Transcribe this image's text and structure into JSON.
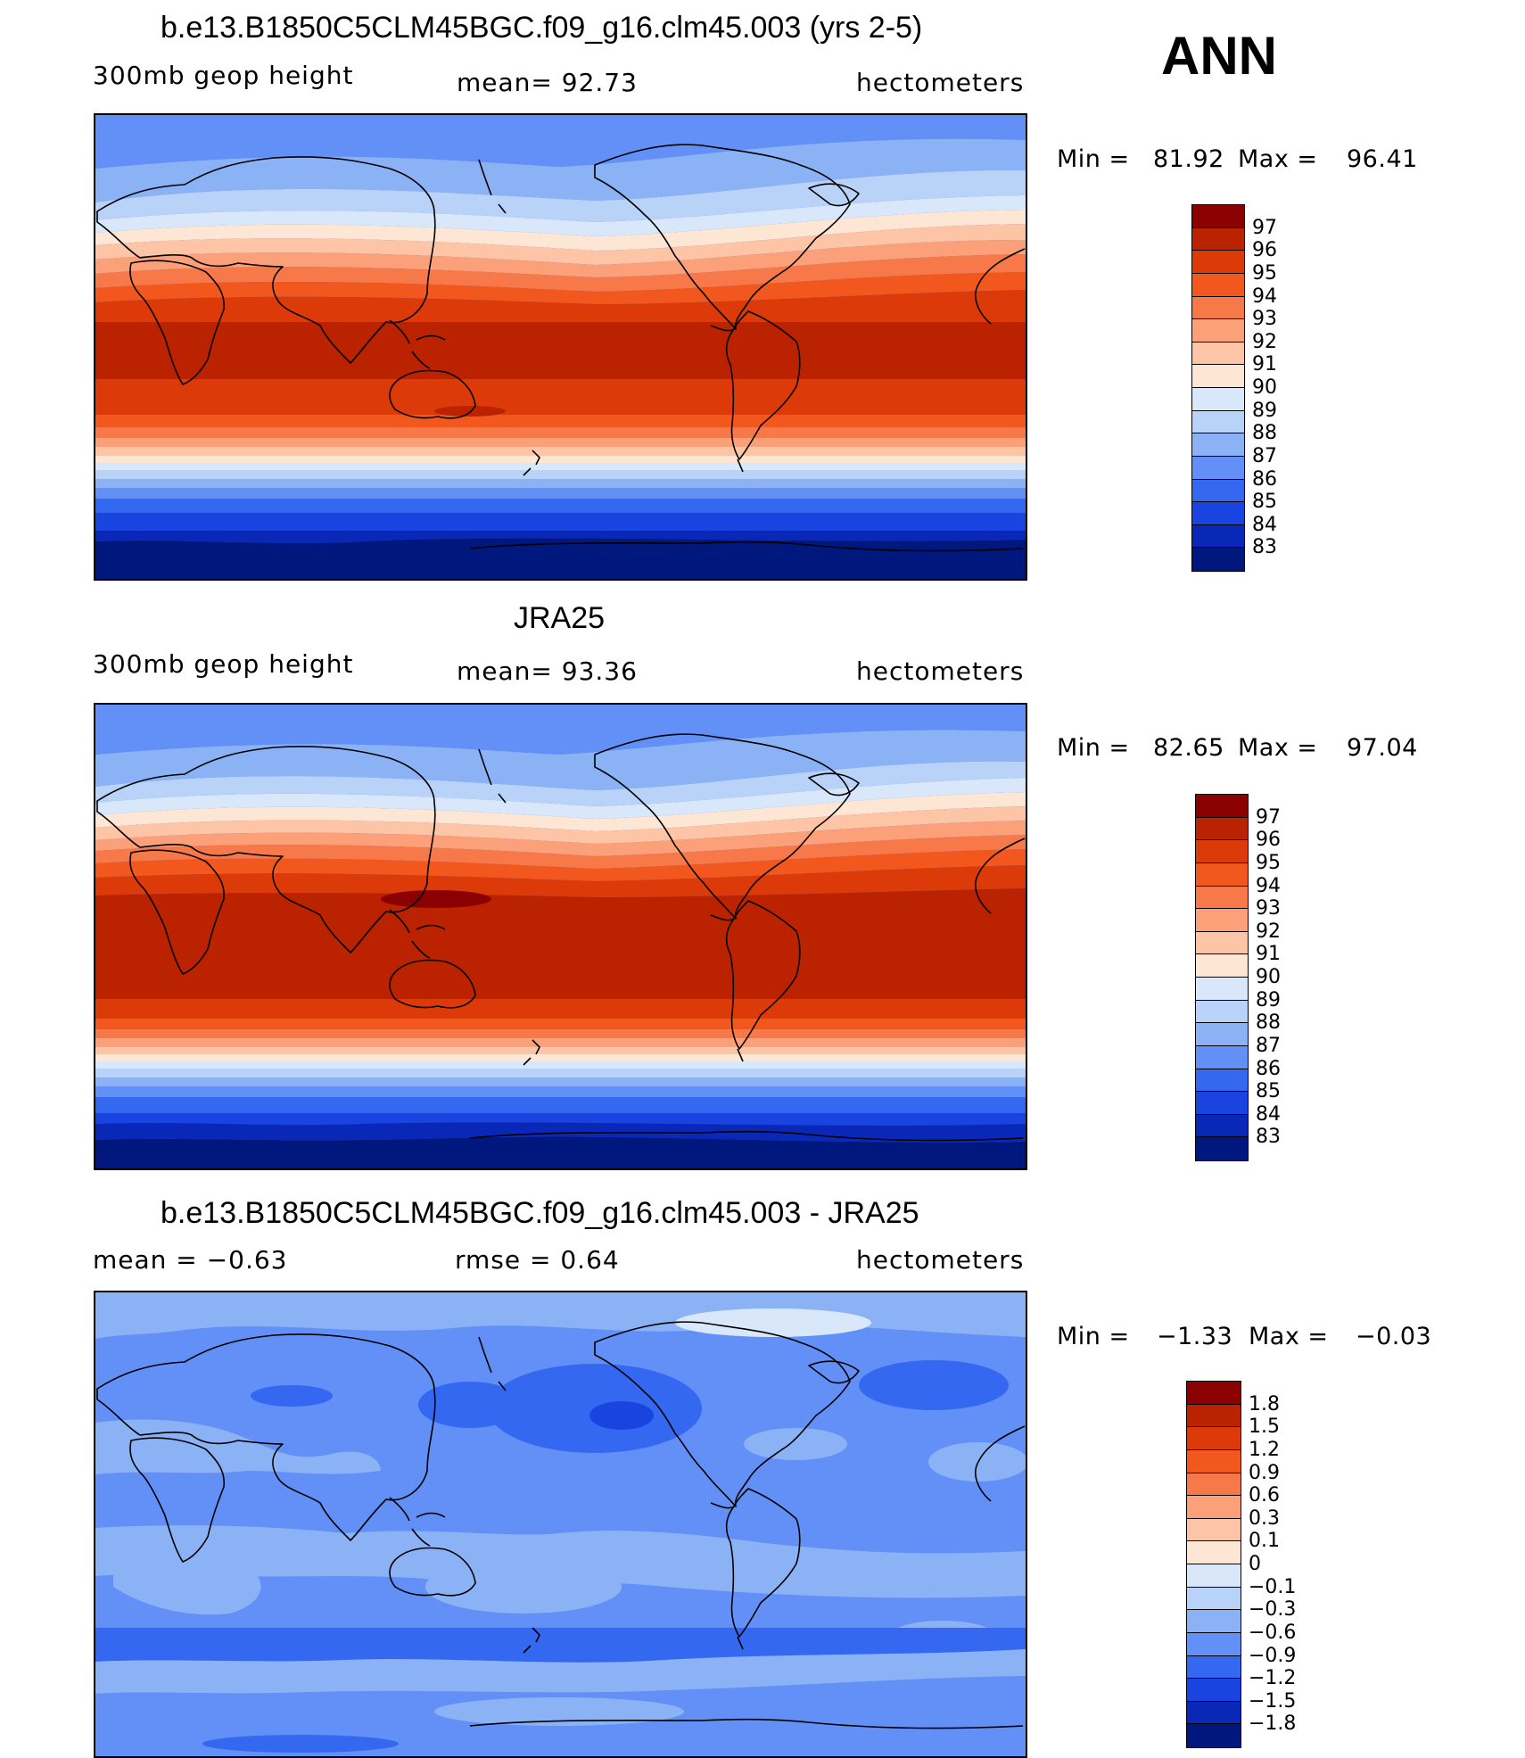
{
  "season": "ANN",
  "panels": [
    {
      "title": "b.e13.B1850C5CLM45BGC.f09_g16.clm45.003 (yrs 2-5)",
      "left": "300mb  geop  height",
      "center": "mean=   92.73",
      "right": "hectometers",
      "min_label": "Min  =",
      "min_value": "81.92",
      "max_label": "Max  =",
      "max_value": "96.41",
      "levels": [
        "97",
        "96",
        "95",
        "94",
        "93",
        "92",
        "91",
        "90",
        "89",
        "88",
        "87",
        "86",
        "85",
        "84",
        "83"
      ],
      "colors": [
        "#8b0000",
        "#bb2200",
        "#dd3a0a",
        "#f2581e",
        "#f7794a",
        "#fca07a",
        "#fdc4a6",
        "#fde6d4",
        "#d8e8fa",
        "#b8d2f8",
        "#8cb2f6",
        "#6290f6",
        "#3468f0",
        "#1a44e0",
        "#0a28b8",
        "#00187e"
      ]
    },
    {
      "title": "JRA25",
      "left": "300mb  geop  height",
      "center": "mean=   93.36",
      "right": "hectometers",
      "min_label": "Min  =",
      "min_value": "82.65",
      "max_label": "Max  =",
      "max_value": "97.04",
      "levels": [
        "97",
        "96",
        "95",
        "94",
        "93",
        "92",
        "91",
        "90",
        "89",
        "88",
        "87",
        "86",
        "85",
        "84",
        "83"
      ],
      "colors": [
        "#8b0000",
        "#bb2200",
        "#dd3a0a",
        "#f2581e",
        "#f7794a",
        "#fca07a",
        "#fdc4a6",
        "#fde6d4",
        "#d8e8fa",
        "#b8d2f8",
        "#8cb2f6",
        "#6290f6",
        "#3468f0",
        "#1a44e0",
        "#0a28b8",
        "#00187e"
      ]
    },
    {
      "title": "b.e13.B1850C5CLM45BGC.f09_g16.clm45.003 - JRA25",
      "left": "mean  =    −0.63",
      "center": "rmse  =     0.64",
      "right": "hectometers",
      "min_label": "Min  =",
      "min_value": "−1.33",
      "max_label": "Max  =",
      "max_value": "−0.03",
      "levels": [
        "1.8",
        "1.5",
        "1.2",
        "0.9",
        "0.6",
        "0.3",
        "0.1",
        "0",
        "−0.1",
        "−0.3",
        "−0.6",
        "−0.9",
        "−1.2",
        "−1.5",
        "−1.8"
      ],
      "colors": [
        "#8b0000",
        "#bb2200",
        "#dd3a0a",
        "#f2581e",
        "#f7794a",
        "#fca07a",
        "#fdc4a6",
        "#fde6d4",
        "#d8e8fa",
        "#b8d2f8",
        "#8cb2f6",
        "#6290f6",
        "#3468f0",
        "#1a44e0",
        "#0a28b8",
        "#00187e"
      ]
    }
  ]
}
